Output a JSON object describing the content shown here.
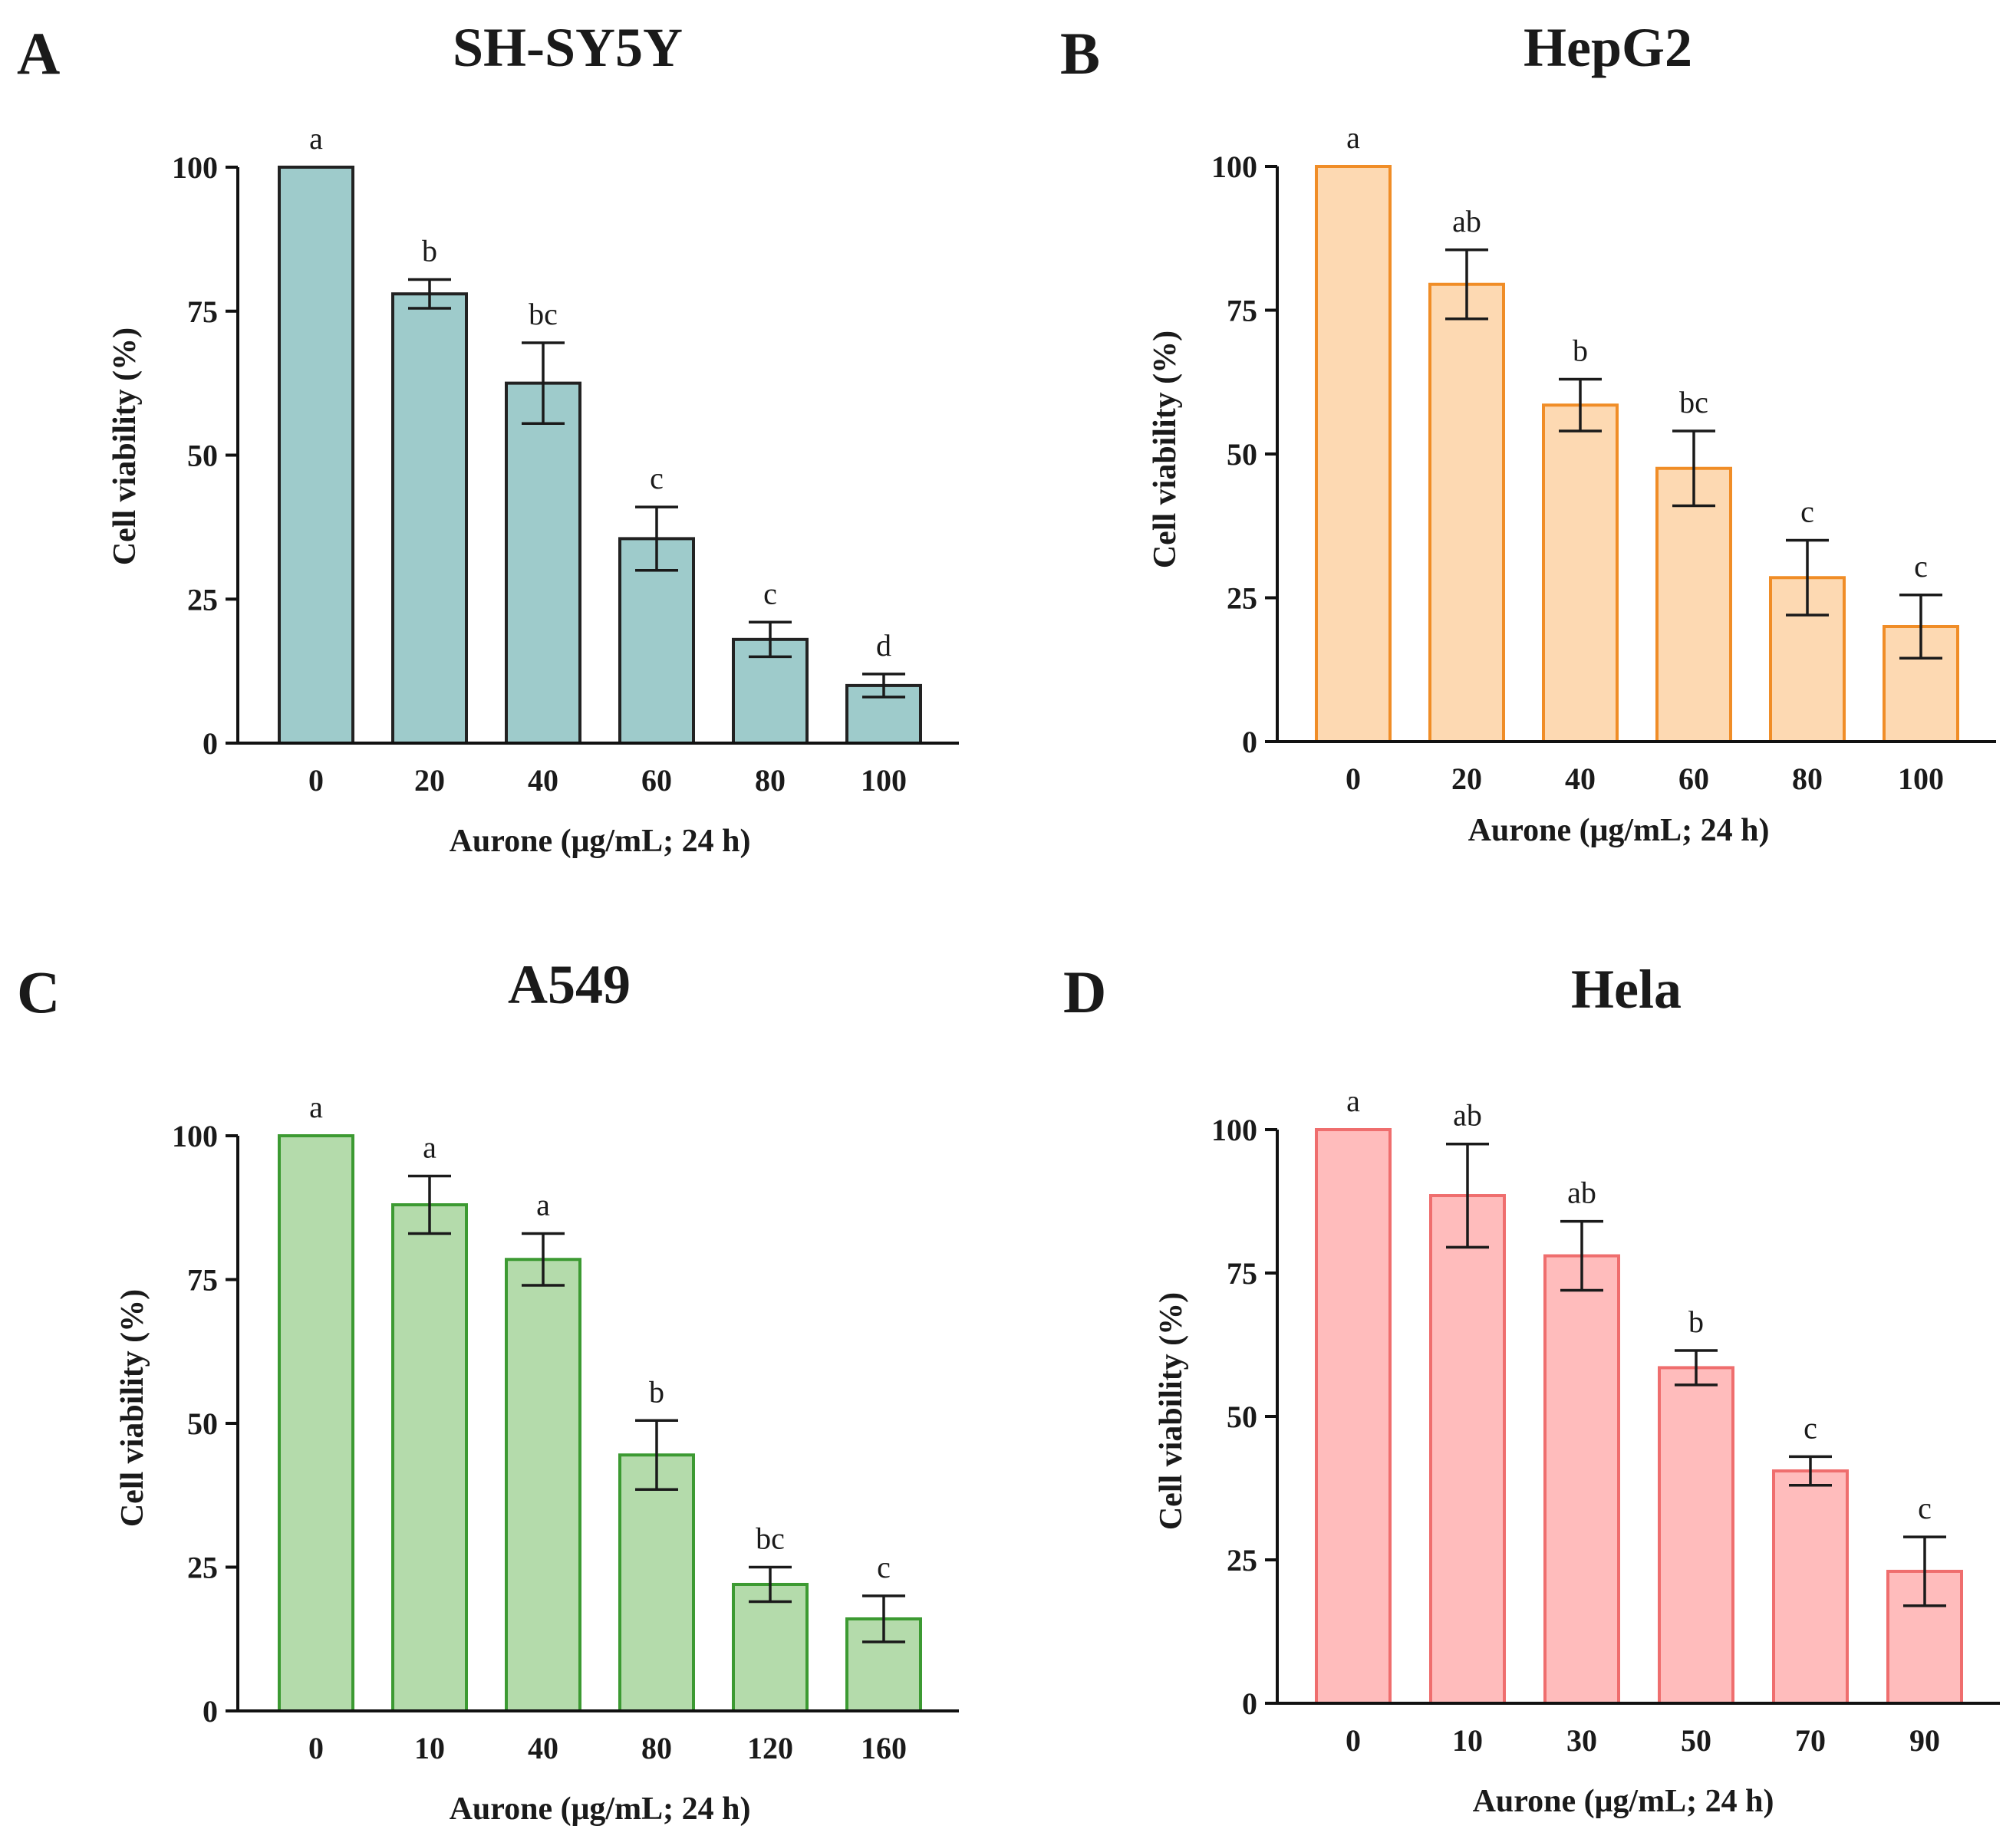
{
  "chart_data": [
    {
      "type": "bar",
      "panel": "A",
      "title": "SH-SY5Y",
      "xlabel": "Aurone (μg/mL; 24 h)",
      "ylabel": "Cell viability (%)",
      "ylim": [
        0,
        100
      ],
      "yticks": [
        0,
        25,
        50,
        75,
        100
      ],
      "categories": [
        "0",
        "20",
        "40",
        "60",
        "80",
        "100"
      ],
      "values": [
        100,
        78,
        62.5,
        35.5,
        18,
        10
      ],
      "errors": [
        0,
        2.5,
        7,
        5.5,
        3,
        2
      ],
      "significance": [
        "a",
        "b",
        "bc",
        "c",
        "c",
        "d"
      ],
      "fill": "#9ecbcb",
      "stroke": "#222222"
    },
    {
      "type": "bar",
      "panel": "B",
      "title": "HepG2",
      "xlabel": "Aurone (μg/mL; 24 h)",
      "ylabel": "Cell viability (%)",
      "ylim": [
        0,
        100
      ],
      "yticks": [
        0,
        25,
        50,
        75,
        100
      ],
      "categories": [
        "0",
        "20",
        "40",
        "60",
        "80",
        "100"
      ],
      "values": [
        100,
        79.5,
        58.5,
        47.5,
        28.5,
        20
      ],
      "errors": [
        0,
        6,
        4.5,
        6.5,
        6.5,
        5.5
      ],
      "significance": [
        "a",
        "ab",
        "b",
        "bc",
        "c",
        "c"
      ],
      "fill": "#fdd9b2",
      "stroke": "#f08d27"
    },
    {
      "type": "bar",
      "panel": "C",
      "title": "A549",
      "xlabel": "Aurone (μg/mL; 24 h)",
      "ylabel": "Cell viability (%)",
      "ylim": [
        0,
        100
      ],
      "yticks": [
        0,
        25,
        50,
        75,
        100
      ],
      "categories": [
        "0",
        "10",
        "40",
        "80",
        "120",
        "160"
      ],
      "values": [
        100,
        88,
        78.5,
        44.5,
        22,
        16
      ],
      "errors": [
        0,
        5,
        4.5,
        6,
        3,
        4
      ],
      "significance": [
        "a",
        "a",
        "a",
        "b",
        "bc",
        "c"
      ],
      "fill": "#b4dbab",
      "stroke": "#3c9a32"
    },
    {
      "type": "bar",
      "panel": "D",
      "title": "Hela",
      "xlabel": "Aurone (μg/mL; 24 h)",
      "ylabel": "Cell viability (%)",
      "ylim": [
        0,
        100
      ],
      "yticks": [
        0,
        25,
        50,
        75,
        100
      ],
      "categories": [
        "0",
        "10",
        "30",
        "50",
        "70",
        "90"
      ],
      "values": [
        100,
        88.5,
        78,
        58.5,
        40.5,
        23
      ],
      "errors": [
        0,
        9,
        6,
        3,
        2.5,
        6
      ],
      "significance": [
        "a",
        "ab",
        "ab",
        "b",
        "c",
        "c"
      ],
      "fill": "#ffbcbc",
      "stroke": "#ef6e6e"
    }
  ]
}
